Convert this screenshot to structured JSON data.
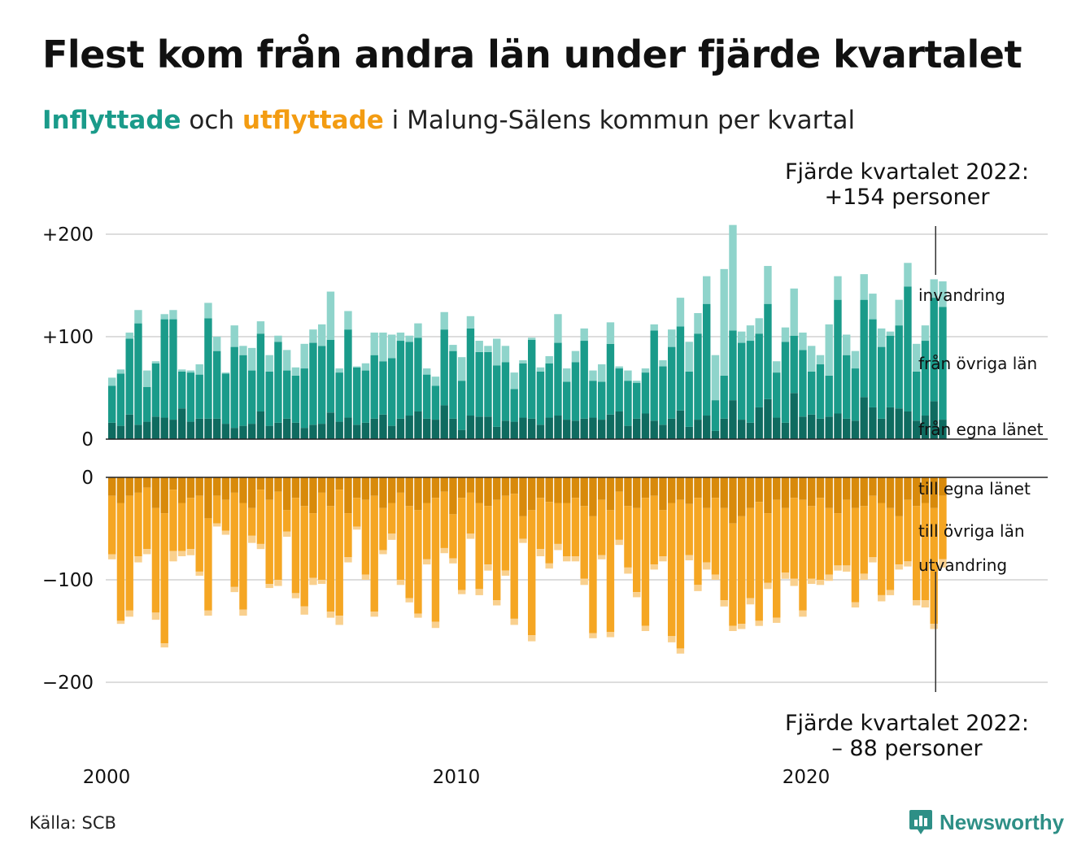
{
  "title": "Flest kom från andra län under fjärde kvartalet",
  "subtitle": {
    "in_word": "Inflyttade",
    "mid1": " och ",
    "out_word": "utflyttade",
    "rest": " i Malung-Sälens kommun per kvartal"
  },
  "annotation_top": {
    "line1": "Fjärde kvartalet 2022:",
    "line2": "+154 personer"
  },
  "annotation_bottom": {
    "line1": "Fjärde kvartalet 2022:",
    "line2": "– 88 personer"
  },
  "source": "Källa: SCB",
  "brand": "Newsworthy",
  "colors": {
    "in_own": "#0f6b60",
    "in_other": "#1a9b8a",
    "in_abroad": "#8fd4cb",
    "out_own": "#d88a0b",
    "out_other": "#f5a623",
    "out_abroad": "#f9d08e",
    "grid": "#dddddd",
    "axis": "#222222"
  },
  "chart_data": [
    {
      "type": "bar",
      "stacked": true,
      "title": "Inflyttade",
      "x_start": "2000 Q1",
      "x_end": "2022 Q4",
      "x_tick_labels": [
        "2000",
        "2010",
        "2020"
      ],
      "y_tick_labels": [
        "+200",
        "+100",
        "0"
      ],
      "ylim": [
        0,
        210
      ],
      "series_labels": [
        "invandring",
        "från övriga län",
        "från egna länet"
      ],
      "series": [
        {
          "name": "från egna länet",
          "values": [
            16,
            13,
            24,
            14,
            17,
            22,
            21,
            19,
            30,
            17,
            20,
            20,
            20,
            15,
            11,
            13,
            15,
            27,
            13,
            16,
            20,
            16,
            11,
            14,
            15,
            26,
            17,
            21,
            14,
            16,
            20,
            24,
            13,
            20,
            23,
            27,
            20,
            19,
            33,
            20,
            9,
            23,
            22,
            22,
            12,
            18,
            17,
            21,
            20,
            14,
            21,
            23,
            19,
            18,
            20,
            21,
            19,
            24,
            27,
            13,
            20,
            25,
            18,
            14,
            20,
            28,
            12,
            19,
            23,
            8,
            20,
            38,
            19,
            16,
            31,
            39,
            21,
            16,
            45,
            22,
            24,
            20,
            22,
            25,
            20,
            18,
            41,
            31,
            20,
            31,
            30,
            27,
            18,
            23,
            37,
            19
          ]
        },
        {
          "name": "från övriga län",
          "values": [
            36,
            51,
            74,
            99,
            34,
            52,
            96,
            98,
            36,
            48,
            43,
            98,
            66,
            49,
            79,
            69,
            52,
            76,
            53,
            79,
            47,
            46,
            58,
            80,
            76,
            71,
            48,
            86,
            56,
            51,
            62,
            52,
            66,
            76,
            72,
            72,
            43,
            33,
            74,
            66,
            48,
            85,
            63,
            63,
            60,
            57,
            32,
            53,
            77,
            52,
            53,
            71,
            37,
            57,
            76,
            36,
            37,
            69,
            42,
            44,
            35,
            40,
            88,
            57,
            70,
            82,
            54,
            84,
            109,
            30,
            42,
            68,
            75,
            80,
            72,
            93,
            44,
            79,
            56,
            65,
            42,
            53,
            40,
            111,
            62,
            51,
            95,
            86,
            70,
            70,
            81,
            122,
            48,
            73,
            101,
            110
          ]
        },
        {
          "name": "invandring",
          "values": [
            8,
            4,
            6,
            13,
            16,
            2,
            5,
            9,
            2,
            2,
            10,
            15,
            14,
            1,
            21,
            9,
            22,
            12,
            16,
            6,
            20,
            8,
            24,
            13,
            21,
            47,
            4,
            18,
            1,
            7,
            22,
            28,
            23,
            8,
            6,
            14,
            6,
            9,
            17,
            6,
            23,
            12,
            11,
            6,
            26,
            16,
            16,
            3,
            2,
            4,
            7,
            28,
            13,
            11,
            12,
            10,
            17,
            21,
            2,
            10,
            2,
            4,
            6,
            6,
            17,
            28,
            29,
            20,
            27,
            44,
            104,
            103,
            11,
            15,
            15,
            37,
            11,
            14,
            46,
            17,
            25,
            9,
            50,
            23,
            20,
            17,
            25,
            25,
            18,
            4,
            25,
            23,
            27,
            15,
            18,
            25
          ]
        }
      ]
    },
    {
      "type": "bar",
      "stacked": true,
      "title": "Utflyttade",
      "x_start": "2000 Q1",
      "x_end": "2022 Q4",
      "y_tick_labels": [
        "0",
        "−100",
        "−200"
      ],
      "ylim": [
        -210,
        0
      ],
      "series_labels": [
        "till egna länet",
        "till övriga län",
        "utvandring"
      ],
      "series": [
        {
          "name": "till egna länet",
          "values": [
            -18,
            -25,
            -18,
            -15,
            -10,
            -30,
            -35,
            -12,
            -25,
            -20,
            -18,
            -40,
            -18,
            -22,
            -15,
            -25,
            -30,
            -12,
            -22,
            -14,
            -32,
            -20,
            -28,
            -35,
            -15,
            -28,
            -12,
            -35,
            -20,
            -22,
            -18,
            -30,
            -25,
            -15,
            -28,
            -32,
            -25,
            -20,
            -14,
            -36,
            -20,
            -15,
            -25,
            -28,
            -22,
            -18,
            -16,
            -38,
            -32,
            -20,
            -24,
            -25,
            -25,
            -20,
            -28,
            -38,
            -22,
            -32,
            -14,
            -28,
            -30,
            -20,
            -18,
            -32,
            -25,
            -22,
            -26,
            -20,
            -30,
            -20,
            -30,
            -45,
            -38,
            -30,
            -24,
            -35,
            -22,
            -30,
            -20,
            -22,
            -28,
            -20,
            -30,
            -35,
            -22,
            -30,
            -28,
            -18,
            -25,
            -30,
            -38,
            -22,
            -28,
            -25,
            -30,
            -18
          ]
        },
        {
          "name": "till övriga län",
          "values": [
            -57,
            -115,
            -112,
            -62,
            -60,
            -102,
            -127,
            -60,
            -47,
            -50,
            -74,
            -90,
            -27,
            -30,
            -92,
            -104,
            -27,
            -53,
            -82,
            -86,
            -21,
            -93,
            -98,
            -63,
            -85,
            -103,
            -123,
            -43,
            -28,
            -73,
            -113,
            -41,
            -30,
            -85,
            -90,
            -101,
            -55,
            -121,
            -55,
            -43,
            -90,
            -40,
            -84,
            -57,
            -98,
            -73,
            -122,
            -22,
            -122,
            -50,
            -60,
            -40,
            -52,
            -57,
            -71,
            -114,
            -54,
            -119,
            -47,
            -60,
            -82,
            -125,
            -67,
            -45,
            -130,
            -145,
            -50,
            -85,
            -53,
            -75,
            -90,
            -100,
            -105,
            -88,
            -116,
            -68,
            -115,
            -63,
            -79,
            -108,
            -71,
            -80,
            -65,
            -51,
            -64,
            -92,
            -66,
            -60,
            -90,
            -80,
            -47,
            -60,
            -92,
            -95,
            -113,
            -62
          ]
        },
        {
          "name": "utvandring",
          "values": [
            -5,
            -3,
            -6,
            -6,
            -5,
            -7,
            -4,
            -10,
            -5,
            -6,
            -4,
            -5,
            -3,
            -4,
            -5,
            -6,
            -7,
            -5,
            -4,
            -6,
            -5,
            -5,
            -8,
            -7,
            -4,
            -6,
            -9,
            -5,
            -3,
            -5,
            -5,
            -4,
            -6,
            -5,
            -4,
            -4,
            -5,
            -6,
            -5,
            -5,
            -4,
            -5,
            -6,
            -6,
            -5,
            -5,
            -6,
            -4,
            -6,
            -7,
            -5,
            -6,
            -5,
            -5,
            -6,
            -5,
            -4,
            -5,
            -5,
            -6,
            -5,
            -5,
            -5,
            -5,
            -6,
            -5,
            -5,
            -6,
            -7,
            -5,
            -6,
            -5,
            -5,
            -6,
            -5,
            -6,
            -5,
            -6,
            -7,
            -6,
            -5,
            -5,
            -6,
            -5,
            -6,
            -5,
            -6,
            -5,
            -6,
            -5,
            -5,
            -5,
            -5,
            -7,
            -5,
            -8
          ]
        }
      ]
    }
  ]
}
